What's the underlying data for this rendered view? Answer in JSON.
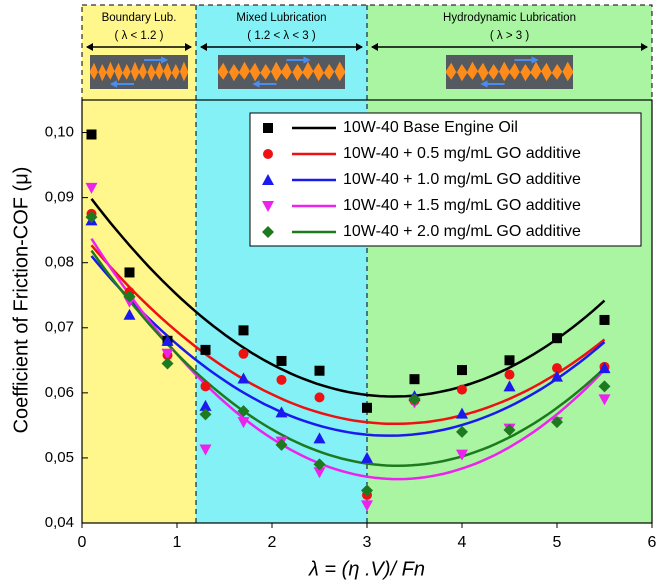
{
  "chart_data": {
    "type": "scatter",
    "x_label": "λ = (η .V)/ Fn",
    "y_label": "Coefficient of Friction-COF (μ)",
    "xlim": [
      0,
      6
    ],
    "xticks": [
      0,
      1,
      2,
      3,
      4,
      5,
      6
    ],
    "ylim": [
      0.04,
      0.105
    ],
    "yticks": [
      {
        "value": 0.04,
        "label": "0,04"
      },
      {
        "value": 0.05,
        "label": "0,05"
      },
      {
        "value": 0.06,
        "label": "0,06"
      },
      {
        "value": 0.07,
        "label": "0,07"
      },
      {
        "value": 0.08,
        "label": "0,08"
      },
      {
        "value": 0.09,
        "label": "0,09"
      },
      {
        "value": 0.1,
        "label": "0,10"
      }
    ],
    "legend": "upper right",
    "trend": "quadratic",
    "regions": [
      {
        "label": "Boundary Lub.",
        "condition": "( λ < 1.2 )",
        "from": 0,
        "to": 1.2,
        "color": "#fff68c"
      },
      {
        "label": "Mixed Lubrication",
        "condition": "( 1.2 < λ < 3 )",
        "from": 1.2,
        "to": 3,
        "color": "#84f1f6"
      },
      {
        "label": "Hydrodynamic Lubrication",
        "condition": "( λ > 3 )",
        "from": 3,
        "to": 6,
        "color": "#aaf5a2"
      }
    ],
    "x": [
      0.1,
      0.5,
      0.9,
      1.3,
      1.7,
      2.1,
      2.5,
      3.0,
      3.5,
      4.0,
      4.5,
      5.0,
      5.5
    ],
    "series": [
      {
        "name": "10W-40 Base Engine Oil",
        "color": "#000000",
        "marker": "square",
        "values": [
          0.0997,
          0.0785,
          0.068,
          0.0666,
          0.0696,
          0.0649,
          0.0634,
          0.0577,
          0.0621,
          0.0635,
          0.065,
          0.0684,
          0.0712
        ]
      },
      {
        "name": "10W-40 + 0.5 mg/mL GO additive",
        "color": "#ee1111",
        "marker": "circle",
        "values": [
          0.0875,
          0.0755,
          0.0658,
          0.061,
          0.066,
          0.062,
          0.0593,
          0.0443,
          0.0588,
          0.0605,
          0.0628,
          0.0638,
          0.064
        ]
      },
      {
        "name": "10W-40 + 1.0 mg/mL GO additive",
        "color": "#1a1aee",
        "marker": "triangle-up",
        "values": [
          0.0865,
          0.072,
          0.068,
          0.058,
          0.0622,
          0.057,
          0.053,
          0.05,
          0.0595,
          0.0568,
          0.061,
          0.0625,
          0.0638
        ]
      },
      {
        "name": "10W-40 + 1.5 mg/mL GO additive",
        "color": "#ee22ee",
        "marker": "triangle-down",
        "values": [
          0.0915,
          0.074,
          0.066,
          0.0513,
          0.0555,
          0.0525,
          0.0478,
          0.0427,
          0.0585,
          0.0505,
          0.0545,
          0.0555,
          0.059
        ]
      },
      {
        "name": "10W-40 + 2.0 mg/mL GO additive",
        "color": "#1e7a1e",
        "marker": "diamond",
        "values": [
          0.087,
          0.0748,
          0.0645,
          0.0567,
          0.0572,
          0.052,
          0.049,
          0.045,
          0.059,
          0.054,
          0.0543,
          0.0555,
          0.061
        ]
      }
    ]
  }
}
